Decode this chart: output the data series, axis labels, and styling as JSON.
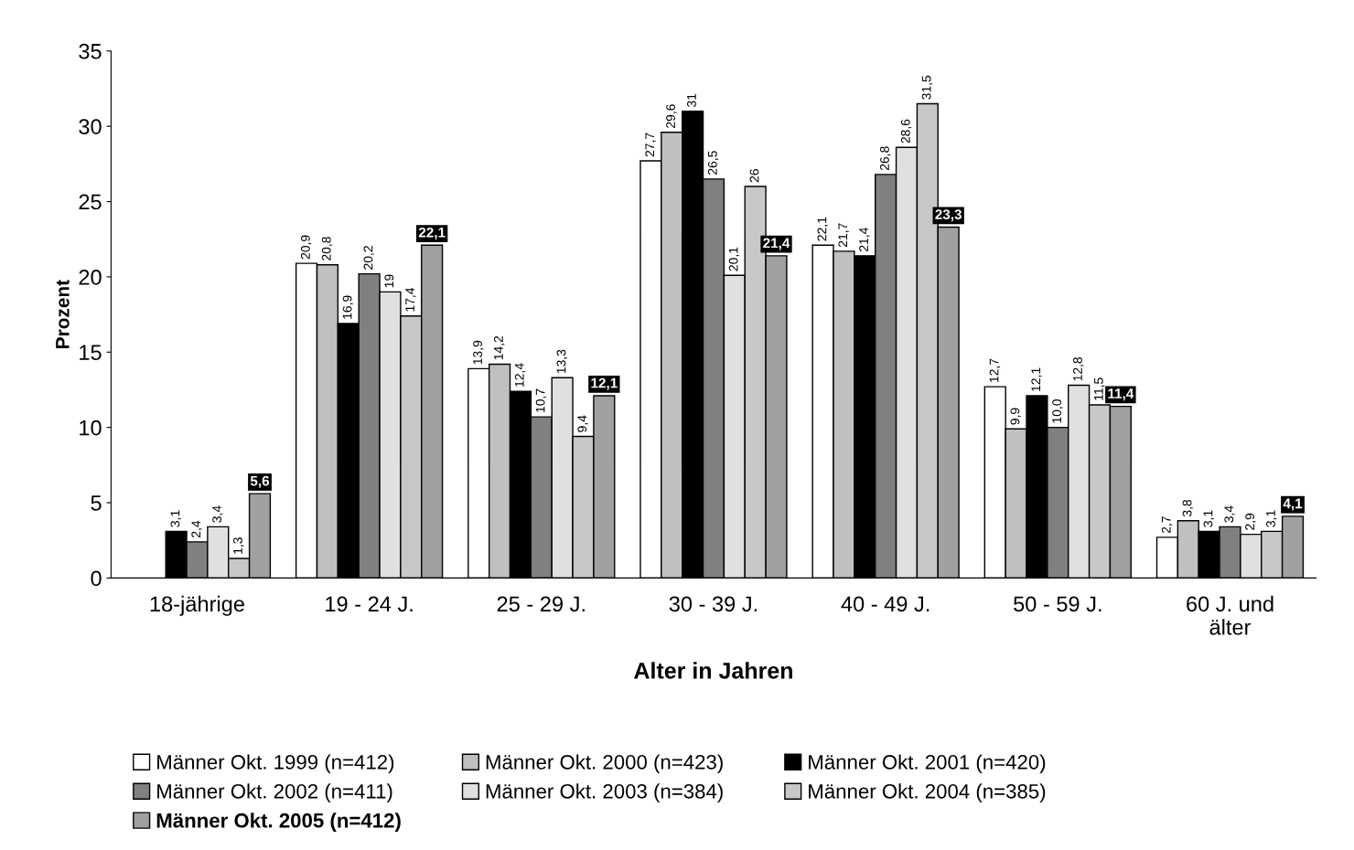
{
  "chart_data": {
    "type": "bar",
    "xlabel": "Alter in Jahren",
    "ylabel": "Prozent",
    "categories": [
      "18-jährige",
      "19 - 24 J.",
      "25 - 29 J.",
      "30 - 39 J.",
      "40 - 49 J.",
      "50 - 59 J.",
      "60 J. und\nälter"
    ],
    "ylim": [
      0,
      35
    ],
    "yticks": [
      0,
      5,
      10,
      15,
      20,
      25,
      30,
      35
    ],
    "grid": false,
    "legend": "bottom",
    "series": [
      {
        "name": "Männer Okt. 1999 (n=412)",
        "color": "#ffffff",
        "values": [
          null,
          20.9,
          13.9,
          27.7,
          22.1,
          12.7,
          2.7
        ],
        "value_labels": [
          null,
          "20,9",
          "13,9",
          "27,7",
          "22,1",
          "12,7",
          "2,7"
        ]
      },
      {
        "name": "Männer Okt. 2000 (n=423)",
        "color": "#c0c0c0",
        "values": [
          null,
          20.8,
          14.2,
          29.6,
          21.7,
          9.9,
          3.8
        ],
        "value_labels": [
          null,
          "20,8",
          "14,2",
          "29,6",
          "21,7",
          "9,9",
          "3,8"
        ]
      },
      {
        "name": "Männer Okt. 2001 (n=420)",
        "color": "#000000",
        "values": [
          3.1,
          16.9,
          12.4,
          31,
          21.4,
          12.1,
          3.1
        ],
        "value_labels": [
          "3,1",
          "16,9",
          "12,4",
          "31",
          "21,4",
          "12,1",
          "3,1"
        ]
      },
      {
        "name": "Männer Okt. 2002 (n=411)",
        "color": "#808080",
        "values": [
          2.4,
          20.2,
          10.7,
          26.5,
          26.8,
          10.0,
          3.4
        ],
        "value_labels": [
          "2,4",
          "20,2",
          "10,7",
          "26,5",
          "26,8",
          "10,0",
          "3,4"
        ]
      },
      {
        "name": "Männer Okt. 2003 (n=384)",
        "color": "#e0e0e0",
        "values": [
          3.4,
          19,
          13.3,
          20.1,
          28.6,
          12.8,
          2.9
        ],
        "value_labels": [
          "3,4",
          "19",
          "13,3",
          "20,1",
          "28,6",
          "12,8",
          "2,9"
        ]
      },
      {
        "name": "Männer Okt. 2004 (n=385)",
        "color": "#c8c8c8",
        "values": [
          1.3,
          17.4,
          9.4,
          26,
          31.5,
          11.5,
          3.1
        ],
        "value_labels": [
          "1,3",
          "17,4",
          "9,4",
          "26",
          "31,5",
          "11,5",
          "3,1"
        ]
      },
      {
        "name": "Männer Okt. 2005 (n=412)",
        "color": "#a0a0a0",
        "values": [
          5.6,
          22.1,
          12.1,
          21.4,
          23.3,
          11.4,
          4.1
        ],
        "value_labels": [
          "5,6",
          "22,1",
          "12,1",
          "21,4",
          "23,3",
          "11,4",
          "4,1"
        ]
      }
    ]
  }
}
